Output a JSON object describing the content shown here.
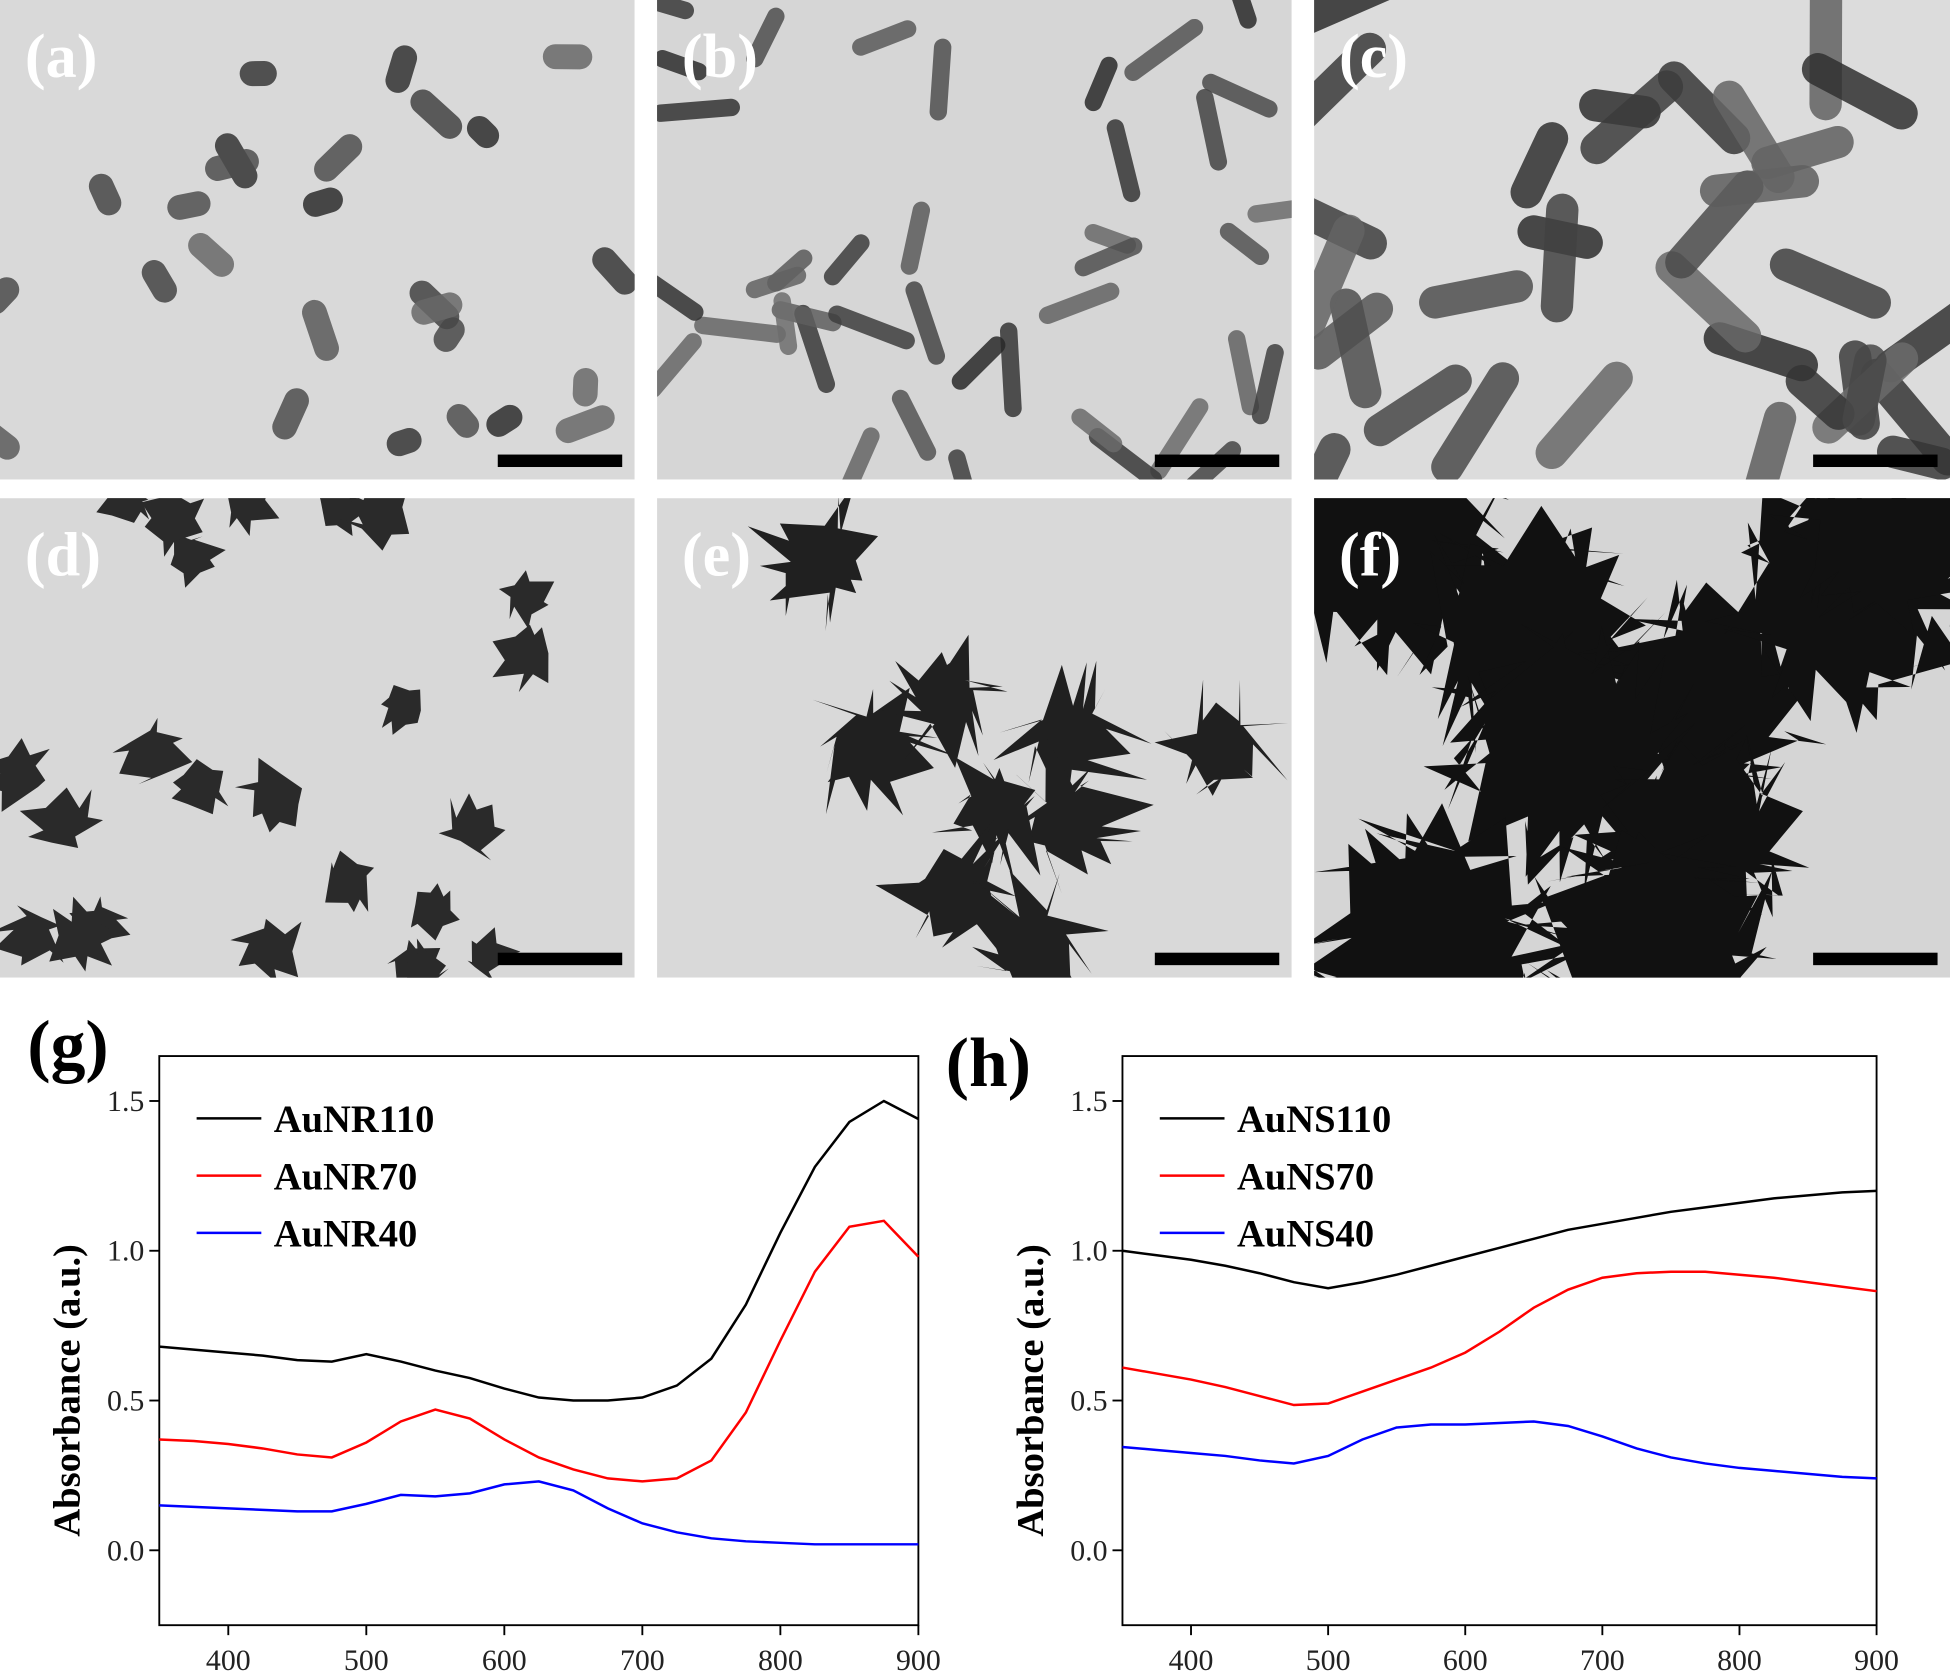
{
  "image_panels": [
    {
      "label": "(a)"
    },
    {
      "label": "(b)"
    },
    {
      "label": "(c)"
    },
    {
      "label": "(d)"
    },
    {
      "label": "(e)"
    },
    {
      "label": "(f)"
    }
  ],
  "chart_data": [
    {
      "type": "line",
      "title": "(g)",
      "y_label": "Absorbance (a.u.)",
      "x": [
        350,
        375,
        400,
        425,
        450,
        475,
        500,
        525,
        550,
        575,
        600,
        625,
        650,
        675,
        700,
        725,
        750,
        775,
        800,
        825,
        850,
        875,
        900
      ],
      "series": [
        {
          "name": "AuNR110",
          "color": "#000000",
          "values": [
            0.68,
            0.67,
            0.66,
            0.65,
            0.635,
            0.63,
            0.655,
            0.63,
            0.6,
            0.575,
            0.54,
            0.51,
            0.5,
            0.5,
            0.51,
            0.55,
            0.64,
            0.82,
            1.06,
            1.28,
            1.43,
            1.5,
            1.44
          ]
        },
        {
          "name": "AuNR70",
          "color": "#ff0000",
          "values": [
            0.37,
            0.365,
            0.355,
            0.34,
            0.32,
            0.31,
            0.36,
            0.43,
            0.47,
            0.44,
            0.37,
            0.31,
            0.27,
            0.24,
            0.23,
            0.24,
            0.3,
            0.46,
            0.7,
            0.93,
            1.08,
            1.1,
            0.98
          ]
        },
        {
          "name": "AuNR40",
          "color": "#0000ff",
          "values": [
            0.15,
            0.145,
            0.14,
            0.135,
            0.13,
            0.13,
            0.155,
            0.185,
            0.18,
            0.19,
            0.22,
            0.23,
            0.2,
            0.14,
            0.09,
            0.06,
            0.04,
            0.03,
            0.025,
            0.02,
            0.02,
            0.02,
            0.02
          ]
        }
      ],
      "xlim": [
        350,
        900
      ],
      "xticks": [
        400,
        500,
        600,
        700,
        800,
        900
      ],
      "ylim": [
        -0.25,
        1.65
      ],
      "yticks": [
        {
          "value": 0,
          "label": "0.0"
        },
        0.5,
        {
          "value": 1,
          "label": "1.0"
        },
        1.5
      ],
      "legend": "upper left"
    },
    {
      "type": "line",
      "title": "(h)",
      "y_label": "Absorbance (a.u.)",
      "x": [
        350,
        375,
        400,
        425,
        450,
        475,
        500,
        525,
        550,
        575,
        600,
        625,
        650,
        675,
        700,
        725,
        750,
        775,
        800,
        825,
        850,
        875,
        900
      ],
      "series": [
        {
          "name": "AuNS110",
          "color": "#000000",
          "values": [
            1.0,
            0.985,
            0.97,
            0.95,
            0.925,
            0.895,
            0.875,
            0.895,
            0.92,
            0.95,
            0.98,
            1.01,
            1.04,
            1.07,
            1.09,
            1.11,
            1.13,
            1.145,
            1.16,
            1.175,
            1.185,
            1.195,
            1.2
          ]
        },
        {
          "name": "AuNS70",
          "color": "#ff0000",
          "values": [
            0.61,
            0.59,
            0.57,
            0.545,
            0.515,
            0.485,
            0.49,
            0.53,
            0.57,
            0.61,
            0.66,
            0.73,
            0.81,
            0.87,
            0.91,
            0.925,
            0.93,
            0.93,
            0.92,
            0.91,
            0.895,
            0.88,
            0.865
          ]
        },
        {
          "name": "AuNS40",
          "color": "#0000ff",
          "values": [
            0.345,
            0.335,
            0.325,
            0.315,
            0.3,
            0.29,
            0.315,
            0.37,
            0.41,
            0.42,
            0.42,
            0.425,
            0.43,
            0.415,
            0.38,
            0.34,
            0.31,
            0.29,
            0.275,
            0.265,
            0.255,
            0.245,
            0.24
          ]
        }
      ],
      "xlim": [
        350,
        900
      ],
      "xticks": [
        400,
        500,
        600,
        700,
        800,
        900
      ],
      "ylim": [
        -0.25,
        1.65
      ],
      "yticks": [
        {
          "value": 0,
          "label": "0.0"
        },
        0.5,
        {
          "value": 1,
          "label": "1.0"
        },
        1.5
      ],
      "legend": "upper left"
    }
  ]
}
